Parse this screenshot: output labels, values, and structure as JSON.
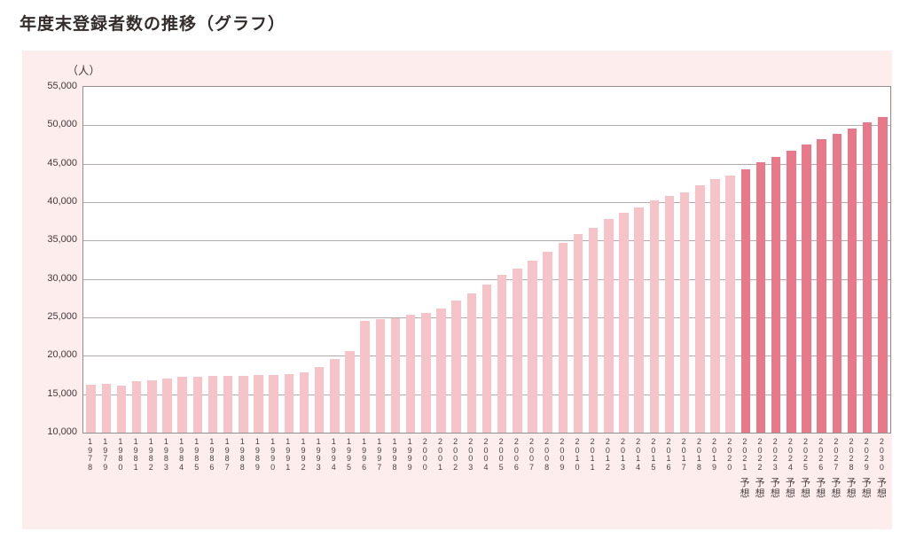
{
  "page": {
    "title": "年度末登録者数の推移（グラフ）"
  },
  "colors": {
    "panel_bg": "#fdeeed",
    "plot_bg": "#ffffff",
    "bar_normal": "#f6c3c9",
    "bar_forecast": "#e8798a",
    "gridline": "#b3abab",
    "text": "#403737"
  },
  "chart_data": {
    "type": "bar",
    "title": "年度末登録者数の推移（グラフ）",
    "xlabel": "",
    "ylabel": "（人）",
    "ylim": [
      10000,
      55000
    ],
    "ytick_interval": 5000,
    "ytick_labels": [
      "55,000",
      "50,000",
      "45,000",
      "40,000",
      "35,000",
      "30,000",
      "25,000",
      "20,000",
      "15,000",
      "10,000"
    ],
    "grid": true,
    "legend": false,
    "forecast_suffix": "予想",
    "series_name": "年度末登録者数",
    "points": [
      {
        "year": "1978",
        "value": 16200,
        "forecast": false
      },
      {
        "year": "1979",
        "value": 16400,
        "forecast": false
      },
      {
        "year": "1980",
        "value": 16100,
        "forecast": false
      },
      {
        "year": "1981",
        "value": 16700,
        "forecast": false
      },
      {
        "year": "1982",
        "value": 16800,
        "forecast": false
      },
      {
        "year": "1983",
        "value": 17100,
        "forecast": false
      },
      {
        "year": "1984",
        "value": 17300,
        "forecast": false
      },
      {
        "year": "1985",
        "value": 17300,
        "forecast": false
      },
      {
        "year": "1986",
        "value": 17400,
        "forecast": false
      },
      {
        "year": "1987",
        "value": 17400,
        "forecast": false
      },
      {
        "year": "1988",
        "value": 17400,
        "forecast": false
      },
      {
        "year": "1989",
        "value": 17500,
        "forecast": false
      },
      {
        "year": "1990",
        "value": 17500,
        "forecast": false
      },
      {
        "year": "1991",
        "value": 17600,
        "forecast": false
      },
      {
        "year": "1992",
        "value": 17800,
        "forecast": false
      },
      {
        "year": "1993",
        "value": 18500,
        "forecast": false
      },
      {
        "year": "1994",
        "value": 19600,
        "forecast": false
      },
      {
        "year": "1995",
        "value": 20600,
        "forecast": false
      },
      {
        "year": "1996",
        "value": 24600,
        "forecast": false
      },
      {
        "year": "1997",
        "value": 24800,
        "forecast": false
      },
      {
        "year": "1998",
        "value": 24900,
        "forecast": false
      },
      {
        "year": "1999",
        "value": 25300,
        "forecast": false
      },
      {
        "year": "2000",
        "value": 25600,
        "forecast": false
      },
      {
        "year": "2001",
        "value": 26200,
        "forecast": false
      },
      {
        "year": "2002",
        "value": 27200,
        "forecast": false
      },
      {
        "year": "2003",
        "value": 28100,
        "forecast": false
      },
      {
        "year": "2004",
        "value": 29300,
        "forecast": false
      },
      {
        "year": "2005",
        "value": 30600,
        "forecast": false
      },
      {
        "year": "2006",
        "value": 31300,
        "forecast": false
      },
      {
        "year": "2007",
        "value": 32400,
        "forecast": false
      },
      {
        "year": "2008",
        "value": 33600,
        "forecast": false
      },
      {
        "year": "2009",
        "value": 34700,
        "forecast": false
      },
      {
        "year": "2010",
        "value": 35800,
        "forecast": false
      },
      {
        "year": "2011",
        "value": 36700,
        "forecast": false
      },
      {
        "year": "2012",
        "value": 37800,
        "forecast": false
      },
      {
        "year": "2013",
        "value": 38600,
        "forecast": false
      },
      {
        "year": "2014",
        "value": 39300,
        "forecast": false
      },
      {
        "year": "2015",
        "value": 40200,
        "forecast": false
      },
      {
        "year": "2016",
        "value": 40800,
        "forecast": false
      },
      {
        "year": "2017",
        "value": 41300,
        "forecast": false
      },
      {
        "year": "2018",
        "value": 42200,
        "forecast": false
      },
      {
        "year": "2019",
        "value": 43000,
        "forecast": false
      },
      {
        "year": "2020",
        "value": 43500,
        "forecast": false
      },
      {
        "year": "2021",
        "value": 44300,
        "forecast": true
      },
      {
        "year": "2022",
        "value": 45200,
        "forecast": true
      },
      {
        "year": "2023",
        "value": 45900,
        "forecast": true
      },
      {
        "year": "2024",
        "value": 46700,
        "forecast": true
      },
      {
        "year": "2025",
        "value": 47500,
        "forecast": true
      },
      {
        "year": "2026",
        "value": 48200,
        "forecast": true
      },
      {
        "year": "2027",
        "value": 48900,
        "forecast": true
      },
      {
        "year": "2028",
        "value": 49600,
        "forecast": true
      },
      {
        "year": "2029",
        "value": 50400,
        "forecast": true
      },
      {
        "year": "2030",
        "value": 51100,
        "forecast": true
      }
    ]
  }
}
